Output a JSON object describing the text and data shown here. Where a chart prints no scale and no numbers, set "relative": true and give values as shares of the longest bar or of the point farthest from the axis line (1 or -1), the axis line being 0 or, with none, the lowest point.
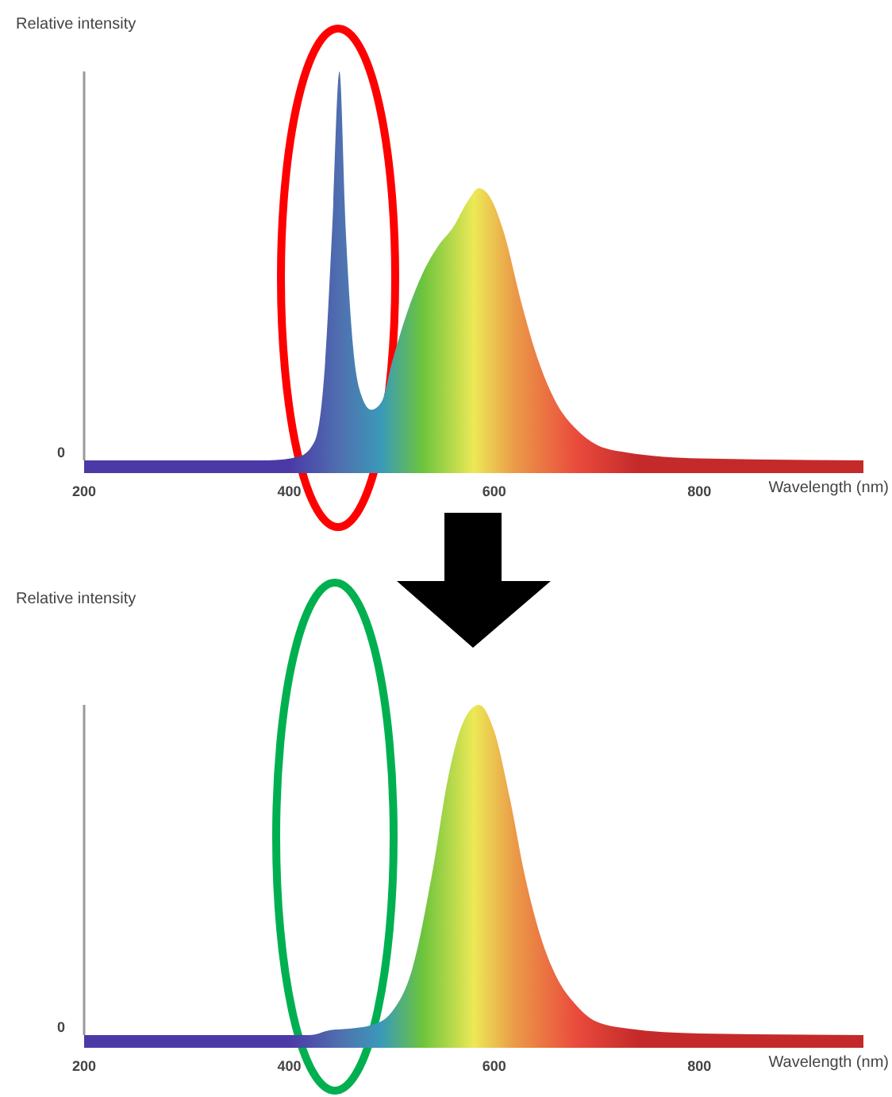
{
  "chart_data": [
    {
      "type": "area",
      "ylabel": "Relative intensity",
      "xlabel": "Wavelength (nm)",
      "relative": true,
      "xlim": [
        200,
        960
      ],
      "xticks": [
        200,
        400,
        600,
        800
      ],
      "annotations": [
        "0"
      ],
      "x": [
        200,
        380,
        410,
        425,
        435,
        442,
        449,
        455,
        462,
        470,
        480,
        490,
        500,
        515,
        530,
        545,
        560,
        575,
        585,
        595,
        610,
        625,
        640,
        660,
        680,
        700,
        730,
        800,
        960
      ],
      "values": [
        0,
        0,
        0.01,
        0.05,
        0.25,
        0.6,
        1,
        0.6,
        0.3,
        0.17,
        0.13,
        0.15,
        0.25,
        0.38,
        0.48,
        0.55,
        0.6,
        0.67,
        0.7,
        0.68,
        0.58,
        0.42,
        0.28,
        0.15,
        0.08,
        0.04,
        0.02,
        0.005,
        0
      ]
    },
    {
      "type": "area",
      "ylabel": "Relative intensity",
      "xlabel": "Wavelength (nm)",
      "relative": true,
      "xlim": [
        200,
        960
      ],
      "xticks": [
        200,
        400,
        600,
        800
      ],
      "annotations": [
        "0"
      ],
      "x": [
        200,
        420,
        440,
        460,
        480,
        500,
        520,
        540,
        555,
        570,
        585,
        600,
        615,
        630,
        645,
        660,
        680,
        700,
        730,
        800,
        960
      ],
      "values": [
        0,
        0,
        0.015,
        0.02,
        0.03,
        0.07,
        0.2,
        0.5,
        0.78,
        0.95,
        1,
        0.92,
        0.72,
        0.48,
        0.3,
        0.18,
        0.09,
        0.04,
        0.02,
        0.005,
        0
      ]
    }
  ]
}
